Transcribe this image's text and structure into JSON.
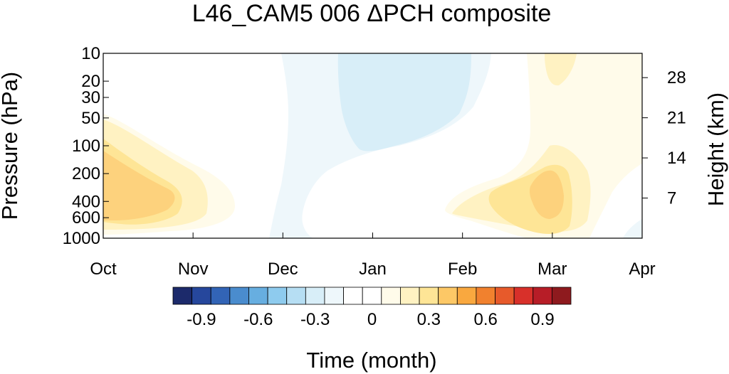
{
  "chart_data": {
    "type": "heatmap",
    "title": "L46_CAM5 006 ΔPCH composite",
    "xlabel": "Time (month)",
    "ylabel": "Pressure (hPa)",
    "y2label": "Height (km)",
    "x_ticks": [
      "Oct",
      "Nov",
      "Dec",
      "Jan",
      "Feb",
      "Mar",
      "Apr"
    ],
    "y_ticks": [
      10,
      20,
      30,
      50,
      100,
      200,
      400,
      600,
      1000
    ],
    "y_scale": "log",
    "ylim": [
      1000,
      10
    ],
    "y2_ticks": [
      7,
      14,
      21,
      28
    ],
    "colorbar_ticks": [
      "-0.9",
      "-0.6",
      "-0.3",
      "0",
      "0.3",
      "0.6",
      "0.9"
    ],
    "colorbar_levels": [
      -1.0,
      -0.9,
      -0.8,
      -0.7,
      -0.6,
      -0.5,
      -0.4,
      -0.3,
      -0.2,
      -0.1,
      0,
      0.1,
      0.2,
      0.3,
      0.4,
      0.5,
      0.6,
      0.7,
      0.8,
      0.9,
      1.0
    ],
    "colorbar_colors": [
      "#1c2a6b",
      "#26479c",
      "#3264b6",
      "#4a8cce",
      "#67aee0",
      "#8ecbee",
      "#b6def3",
      "#d8eef8",
      "#eef7fb",
      "#ffffff",
      "#ffffff",
      "#fffbea",
      "#fff2c2",
      "#fee596",
      "#fdc866",
      "#f9a83f",
      "#f1812e",
      "#e75a2b",
      "#d8302a",
      "#b71d27",
      "#8e1a1e"
    ],
    "regions": [
      {
        "month": "Oct-Nov",
        "pressure_hPa": [
          150,
          800
        ],
        "peak_value": 0.3,
        "sign": "positive"
      },
      {
        "month": "Dec-Jan",
        "pressure_hPa": [
          10,
          100
        ],
        "peak_value": -0.2,
        "sign": "negative"
      },
      {
        "month": "Feb-Mar",
        "pressure_hPa": [
          200,
          800
        ],
        "peak_value": 0.3,
        "sign": "positive"
      },
      {
        "month": "Mar-Apr",
        "pressure_hPa": [
          10,
          1000
        ],
        "peak_value": 0.1,
        "sign": "positive"
      }
    ]
  }
}
